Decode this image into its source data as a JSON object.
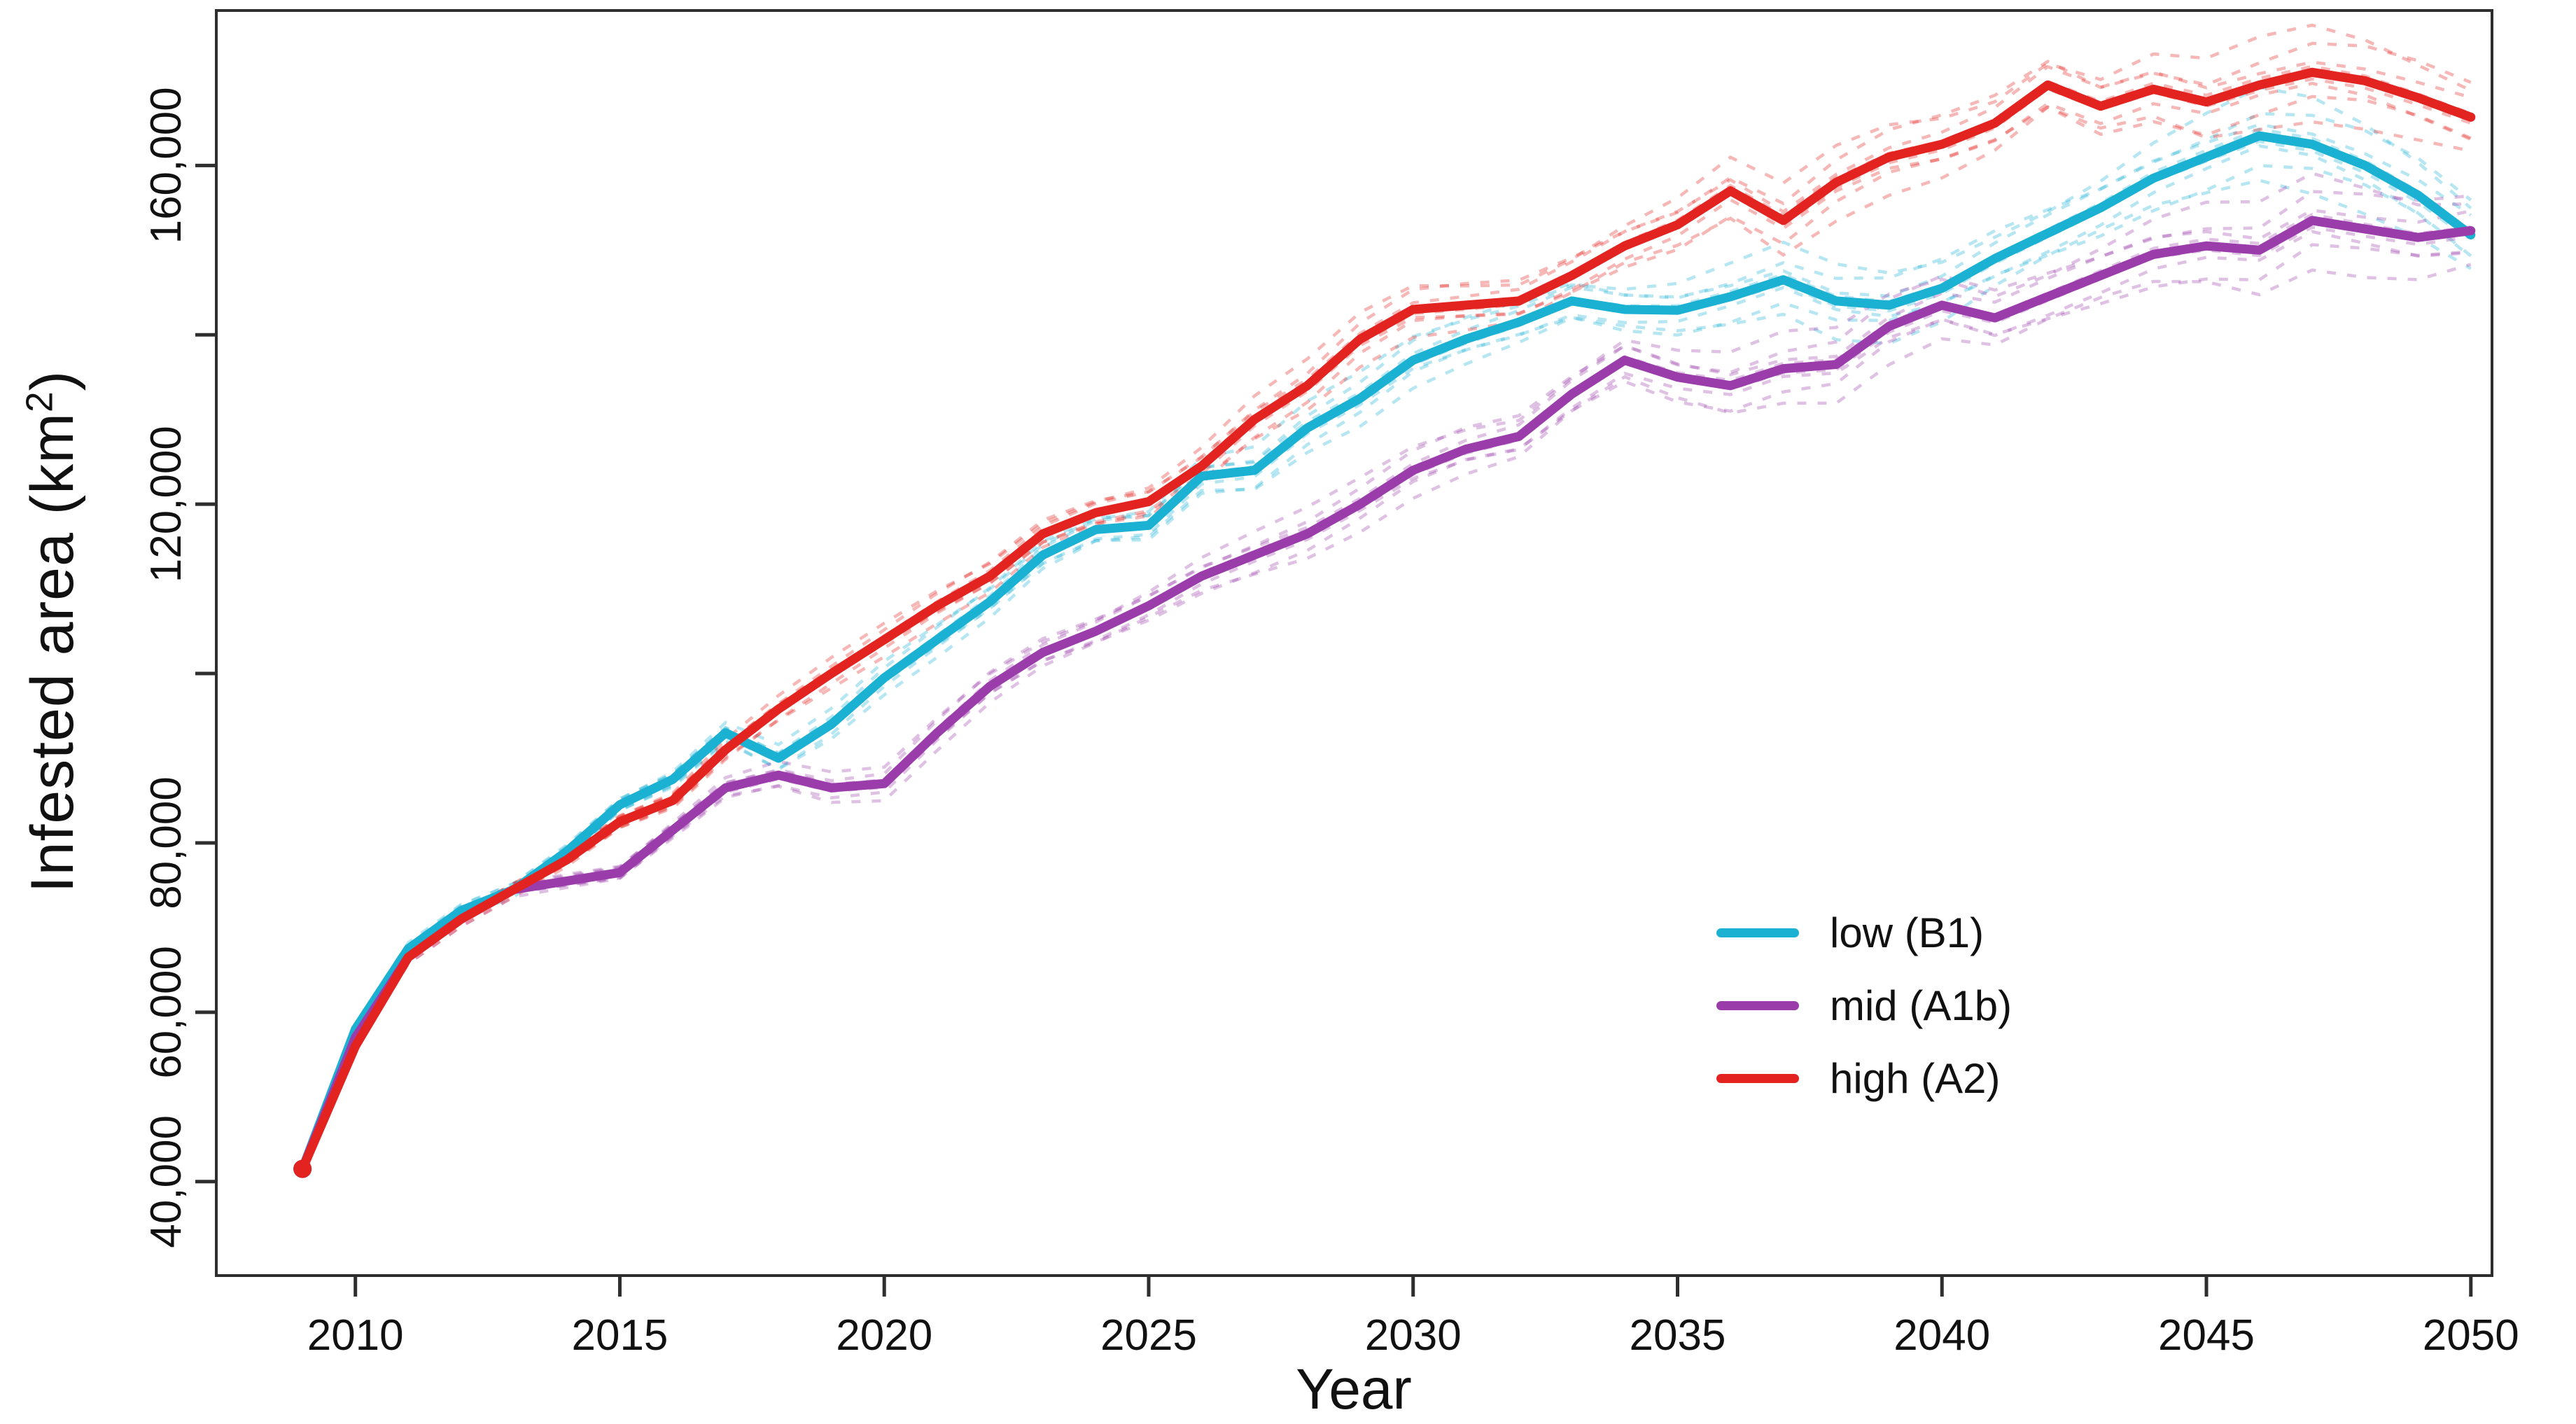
{
  "figure": {
    "kind": "R-style line plot with ensemble runs",
    "background": "#ffffff"
  },
  "axes": {
    "ylabel_base": "Infested area (km",
    "ylabel_sup": "2",
    "ylabel_close": ")",
    "xlabel": "Year",
    "axis_color": "#2e2e2e",
    "text_color": "#111111"
  },
  "chart_data": {
    "type": "line",
    "title": "",
    "xlabel": "Year",
    "ylabel": "Infested area (km²)",
    "grid": false,
    "legend_position": "right-middle",
    "xlim": [
      2007.37,
      2050.4
    ],
    "ylim": [
      28900,
      178300
    ],
    "x_ticks": [
      2010,
      2015,
      2020,
      2025,
      2030,
      2035,
      2040,
      2045,
      2050
    ],
    "y_ticks": [
      40000,
      60000,
      80000,
      100000,
      120000,
      140000,
      160000
    ],
    "y_tick_labels": [
      "40,000",
      "60,000",
      "80,000",
      "",
      "120,000",
      "",
      "160,000"
    ],
    "x_tick_labels": [
      "2010",
      "2015",
      "2020",
      "2025",
      "2030",
      "2035",
      "2040",
      "2045",
      "2050"
    ],
    "ensemble_runs_per_series": 8,
    "x": [
      2009,
      2010,
      2011,
      2012,
      2013,
      2014,
      2015,
      2016,
      2017,
      2018,
      2019,
      2020,
      2021,
      2022,
      2023,
      2024,
      2025,
      2026,
      2027,
      2028,
      2029,
      2030,
      2031,
      2032,
      2033,
      2034,
      2035,
      2036,
      2037,
      2038,
      2039,
      2040,
      2041,
      2042,
      2043,
      2044,
      2045,
      2046,
      2047,
      2048,
      2049,
      2050
    ],
    "series": [
      {
        "name": "low (B1)",
        "color": "#1bb1d2",
        "values": [
          41500,
          58000,
          67500,
          72000,
          74500,
          79000,
          84500,
          87500,
          93000,
          90000,
          94000,
          99500,
          104000,
          108500,
          114000,
          117000,
          117500,
          123300,
          124000,
          129000,
          132500,
          137000,
          139500,
          141500,
          144000,
          143000,
          142900,
          144500,
          146500,
          144000,
          143500,
          145500,
          149000,
          152000,
          155000,
          158500,
          161000,
          163500,
          162500,
          160000,
          156500,
          151800
        ]
      },
      {
        "name": "mid (A1b)",
        "color": "#9a3dab",
        "values": [
          41500,
          57000,
          66500,
          71000,
          74500,
          75500,
          76500,
          81500,
          86500,
          88000,
          86500,
          87000,
          93000,
          98500,
          102500,
          105000,
          108000,
          111500,
          114000,
          116500,
          120000,
          124000,
          126500,
          128000,
          133000,
          137000,
          135000,
          134000,
          136000,
          136500,
          141000,
          143500,
          142000,
          144500,
          147000,
          149500,
          150500,
          150000,
          153500,
          152500,
          151500,
          152300
        ]
      },
      {
        "name": "high (A2)",
        "color": "#e32320",
        "values": [
          41500,
          56000,
          66500,
          71000,
          74500,
          78000,
          82500,
          85000,
          91000,
          95800,
          100000,
          104000,
          108000,
          111500,
          116500,
          119000,
          120300,
          124500,
          130000,
          134000,
          139500,
          143000,
          143500,
          144000,
          147000,
          150500,
          153000,
          157000,
          153500,
          158000,
          161000,
          162500,
          165000,
          169500,
          167000,
          169000,
          167500,
          169500,
          171000,
          170000,
          168000,
          165700
        ]
      }
    ]
  }
}
